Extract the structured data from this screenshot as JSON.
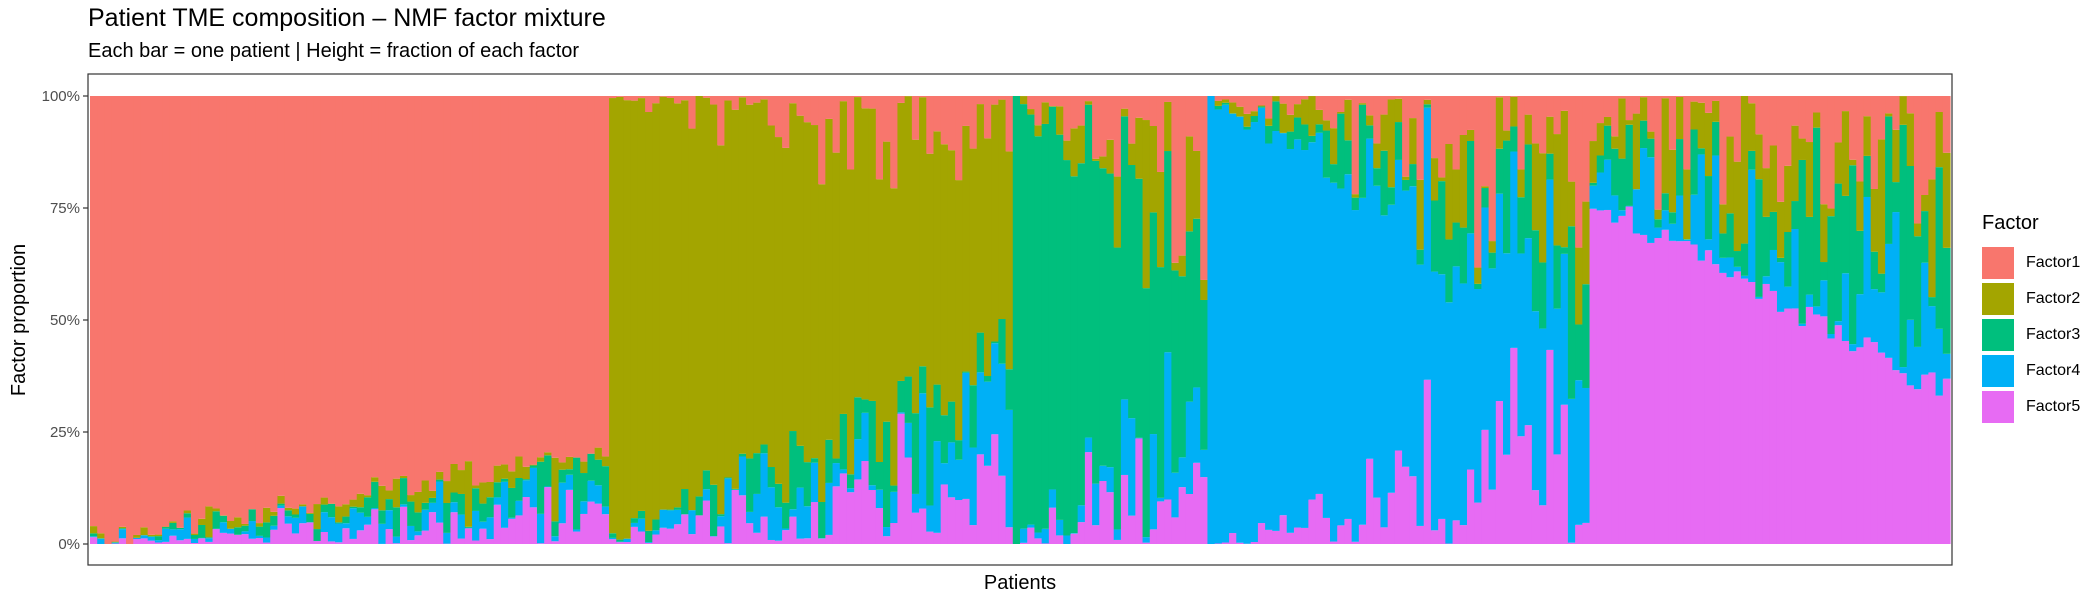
{
  "chart_data": {
    "type": "bar",
    "stacked": true,
    "title": "Patient TME composition – NMF factor mixture",
    "subtitle": "Each bar = one patient | Height = fraction of each factor",
    "xlabel": "Patients",
    "ylabel": "Factor proportion",
    "ylim": [
      0,
      1
    ],
    "y_ticks": [
      0,
      0.25,
      0.5,
      0.75,
      1.0
    ],
    "y_tick_labels": [
      "0%",
      "25%",
      "50%",
      "75%",
      "100%"
    ],
    "grid": false,
    "legend": {
      "title": "Factor",
      "position": "right"
    },
    "n_patients": 258,
    "series_names": [
      "Factor1",
      "Factor2",
      "Factor3",
      "Factor4",
      "Factor5"
    ],
    "colors": {
      "Factor1": "#F8766D",
      "Factor2": "#A3A500",
      "Factor3": "#00BF7D",
      "Factor4": "#00B0F6",
      "Factor5": "#E76BF3"
    },
    "group_blocks": [
      {
        "dominant": "Factor1",
        "first_patient": 1,
        "last_patient": 72
      },
      {
        "dominant": "Factor2",
        "first_patient": 73,
        "last_patient": 128
      },
      {
        "dominant": "Factor3",
        "first_patient": 129,
        "last_patient": 155
      },
      {
        "dominant": "Factor4",
        "first_patient": 156,
        "last_patient": 208
      },
      {
        "dominant": "Factor5",
        "first_patient": 209,
        "last_patient": 258
      }
    ],
    "series": [
      {
        "name": "Factor1",
        "dominant_range": [
          0.79,
          0.99
        ],
        "other_range": [
          0.0,
          0.42
        ]
      },
      {
        "name": "Factor2",
        "dominant_range": [
          0.5,
          0.97
        ],
        "other_range": [
          0.0,
          0.42
        ]
      },
      {
        "name": "Factor3",
        "dominant_range": [
          0.35,
          0.98
        ],
        "other_range": [
          0.0,
          0.35
        ]
      },
      {
        "name": "Factor4",
        "dominant_range": [
          0.3,
          1.0
        ],
        "other_range": [
          0.0,
          0.3
        ]
      },
      {
        "name": "Factor5",
        "dominant_range": [
          0.34,
          0.77
        ],
        "other_range": [
          0.0,
          0.48
        ]
      }
    ]
  }
}
